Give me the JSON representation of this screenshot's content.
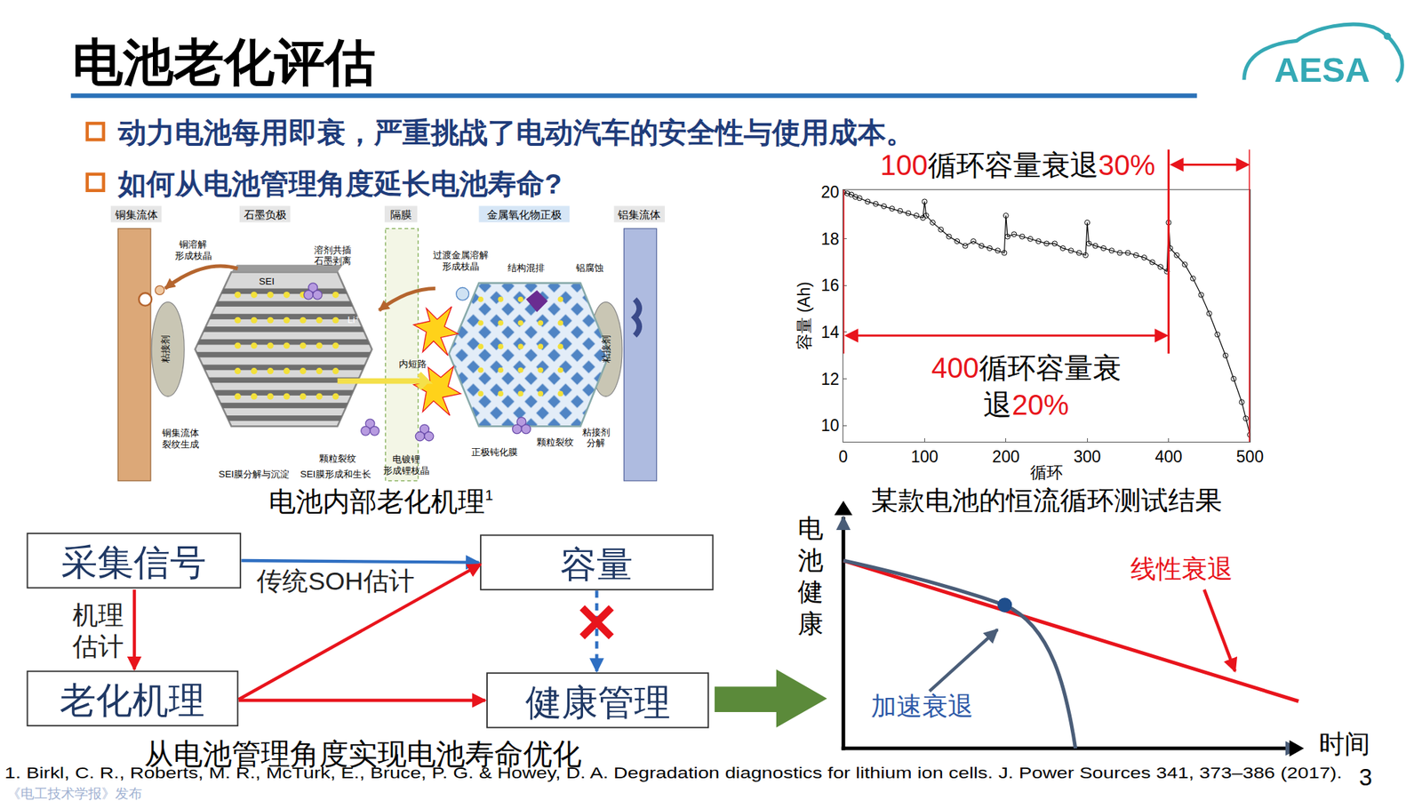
{
  "header": {
    "title": "电池老化评估",
    "logo": "AESA"
  },
  "bullets": [
    "动力电池每用即衰，严重挑战了电动汽车的安全性与使用成本。",
    "如何从电池管理角度延长电池寿命?"
  ],
  "mechanism_figure": {
    "caption": "电池内部老化机理",
    "caption_ref": "1",
    "headers": [
      "铜集流体",
      "石墨负极",
      "隔膜",
      "金属氧化物正极",
      "铝集流体"
    ],
    "labels": {
      "copper_dissolution": [
        "铜溶解",
        "形成枝晶"
      ],
      "sei": [
        "SEI"
      ],
      "solvent": [
        "溶剂共插",
        "石墨剥离"
      ],
      "tm_dissolution": [
        "过渡金属溶解",
        "形成枝晶"
      ],
      "disorder": [
        "结构混排"
      ],
      "al_corrosion": [
        "铝腐蚀"
      ],
      "binder_left": [
        "粘接剂"
      ],
      "binder_right": [
        "粘接剂"
      ],
      "li_ion": [
        "Li⁺"
      ],
      "short": [
        "内短路"
      ],
      "cu_crack": [
        "铜集流体",
        "裂纹生成"
      ],
      "sei_decomp": [
        "SEI膜分解与沉淀"
      ],
      "sei_growth": [
        "SEI膜形成和生长"
      ],
      "crack_anode": [
        "颗粒裂纹"
      ],
      "plating": [
        "电镀锂",
        "形成锂枝晶"
      ],
      "cei": [
        "正极钝化膜"
      ],
      "crack_cathode": [
        "颗粒裂纹"
      ],
      "binder_decomp": [
        "粘接剂",
        "分解"
      ]
    }
  },
  "chart_data": {
    "type": "scatter",
    "title": "某款电池的恒流循环测试结果",
    "xlabel": "循环",
    "ylabel": "容量 (Ah)",
    "x": [
      0,
      5,
      10,
      15,
      20,
      30,
      40,
      50,
      60,
      70,
      80,
      90,
      98,
      100,
      102,
      110,
      120,
      130,
      140,
      150,
      160,
      170,
      180,
      190,
      198,
      200,
      202,
      210,
      220,
      230,
      240,
      250,
      260,
      270,
      280,
      290,
      298,
      300,
      302,
      310,
      320,
      330,
      340,
      350,
      360,
      370,
      380,
      390,
      398,
      400,
      402,
      410,
      420,
      430,
      440,
      450,
      460,
      470,
      480,
      490,
      495,
      500
    ],
    "values": [
      20.0,
      19.95,
      19.9,
      19.8,
      19.75,
      19.6,
      19.5,
      19.4,
      19.3,
      19.2,
      19.1,
      19.0,
      18.9,
      19.6,
      19.0,
      18.7,
      18.4,
      18.1,
      17.9,
      17.7,
      17.9,
      17.7,
      17.6,
      17.5,
      17.4,
      19.0,
      18.1,
      18.2,
      18.1,
      18.0,
      17.9,
      17.8,
      17.8,
      17.6,
      17.5,
      17.4,
      17.3,
      18.7,
      17.8,
      17.7,
      17.6,
      17.5,
      17.4,
      17.4,
      17.3,
      17.2,
      17.0,
      16.8,
      16.6,
      18.7,
      17.6,
      17.3,
      16.9,
      16.3,
      15.6,
      14.8,
      13.9,
      13.0,
      12.0,
      11.0,
      10.3,
      9.6
    ],
    "color": "#000000",
    "marker": "open circle",
    "line_style": "solid",
    "xlim": [
      0,
      500
    ],
    "ylim": [
      9.3,
      20.1
    ],
    "xticks": [
      0,
      100,
      200,
      300,
      400,
      500
    ],
    "yticks": [
      10,
      12,
      14,
      16,
      18,
      20
    ],
    "grid": false,
    "annotations": [
      {
        "lines": [
          "100循环容量衰退30%"
        ],
        "x_from": 400,
        "x_to": 500
      },
      {
        "lines": [
          "400循环容量衰",
          "退20%"
        ],
        "x_from": 0,
        "x_to": 400,
        "y": 13.85
      }
    ]
  },
  "flow_diagram": {
    "nodes": [
      "采集信号",
      "容量",
      "老化机理",
      "健康管理"
    ],
    "edge_labels": {
      "traditional": [
        "传统SOH估计"
      ],
      "mechanism": [
        "机理",
        "估计"
      ]
    },
    "caption": "从电池管理角度实现电池寿命优化"
  },
  "concept_chart": {
    "y_label": "电池健康",
    "x_label": "时间",
    "linear": "线性衰退",
    "accelerated": "加速衰退"
  },
  "footer": {
    "citation": "1. Birkl, C. R., Roberts, M. R., McTurk, E., Bruce, P. G. & Howey, D. A. Degradation diagnostics for lithium ion cells. J. Power Sources 341, 373–386 (2017).",
    "page": "3",
    "watermark": "《电工技术学报》发布"
  }
}
